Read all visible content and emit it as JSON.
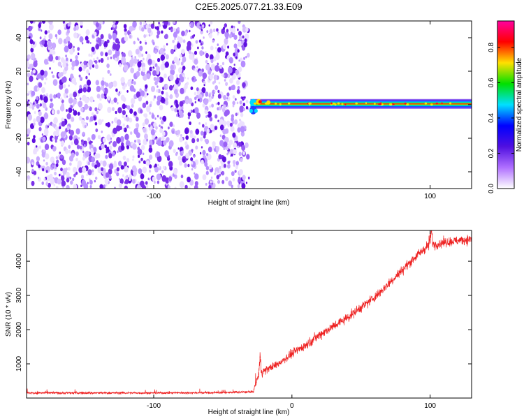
{
  "title": "C2E5.2025.077.21.33.E09",
  "chart_data": [
    {
      "type": "heatmap",
      "name": "spectrogram",
      "xlabel": "Height of straight line (km)",
      "ylabel": "Frequency (Hz)",
      "xlim": [
        -192,
        130
      ],
      "ylim": [
        -50,
        50
      ],
      "xticks": [
        -100,
        100
      ],
      "xtick_labels": [
        "-100",
        "100"
      ],
      "yticks": [
        -40,
        -20,
        0,
        20,
        40
      ],
      "ytick_labels": [
        "-40",
        "-20",
        "0",
        "20",
        "40"
      ],
      "noise_region_x": [
        -192,
        -31
      ],
      "signal_start_x": -31,
      "signal_center_frequency": 0.5,
      "colorbar": {
        "label": "Normalized spectral amplitude",
        "range": [
          0,
          0.95
        ],
        "ticks": [
          0.0,
          0.2,
          0.4,
          0.6,
          0.8
        ],
        "tick_labels": [
          "0.0",
          "0.2",
          "0.4",
          "0.6",
          "0.8"
        ],
        "colors": [
          "#ffffff",
          "#b070ff",
          "#5010e0",
          "#0000ff",
          "#00e0ff",
          "#00e000",
          "#ffe000",
          "#ff0000",
          "#ff00a0"
        ]
      }
    },
    {
      "type": "line",
      "name": "snr",
      "xlabel": "Height of straight line (km)",
      "ylabel": "SNR (10 * v/v)",
      "xlim": [
        -192,
        130
      ],
      "ylim": [
        0,
        4900
      ],
      "xticks": [
        -100,
        0,
        100
      ],
      "xtick_labels": [
        "-100",
        "0",
        "100"
      ],
      "yticks": [
        1000,
        2000,
        3000,
        4000
      ],
      "ytick_labels": [
        "1000",
        "2000",
        "3000",
        "4000"
      ],
      "color": "#ee2222",
      "x": [
        -192,
        -150,
        -100,
        -50,
        -28,
        -24,
        -23,
        -22,
        -20,
        -10,
        0,
        10,
        20,
        30,
        40,
        50,
        60,
        70,
        80,
        90,
        97,
        99,
        100,
        101,
        102,
        103,
        110,
        120,
        130
      ],
      "y": [
        150,
        150,
        150,
        160,
        180,
        700,
        1200,
        750,
        800,
        1000,
        1300,
        1550,
        1850,
        2100,
        2350,
        2650,
        2950,
        3350,
        3750,
        4150,
        4400,
        4500,
        4650,
        4900,
        4500,
        4480,
        4550,
        4600,
        4650
      ],
      "noise": [
        70,
        70,
        60,
        60,
        60,
        300,
        400,
        300,
        200,
        200,
        220,
        240,
        250,
        250,
        250,
        250,
        250,
        250,
        250,
        250,
        250,
        400,
        400,
        300,
        250,
        250,
        250,
        250,
        250
      ]
    }
  ]
}
